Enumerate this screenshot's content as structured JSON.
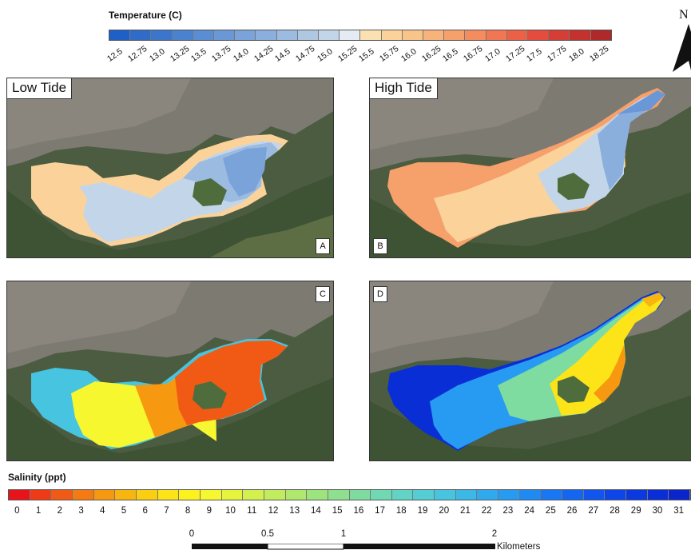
{
  "temperature_legend": {
    "title": "Temperature (C)",
    "labels": [
      "12.5",
      "12.75",
      "13.0",
      "13.25",
      "13.5",
      "13.75",
      "14.0",
      "14.25",
      "14.5",
      "14.75",
      "15.0",
      "15.25",
      "15.5",
      "15.75",
      "16.0",
      "16.25",
      "16.5",
      "16.75",
      "17.0",
      "17.25",
      "17.5",
      "17.75",
      "18.0",
      "18.25"
    ],
    "colors": [
      "#1f5fc8",
      "#2f6cc9",
      "#3b76cc",
      "#4a82d0",
      "#5a8dd3",
      "#6a98d6",
      "#7aa3d9",
      "#8bafdc",
      "#9cbbe0",
      "#aec8e4",
      "#c3d5e8",
      "#e4ebf2",
      "#fbe0b2",
      "#fbd39a",
      "#f9c488",
      "#f8b37a",
      "#f6a06b",
      "#f48c5e",
      "#f17652",
      "#ec6146",
      "#e44d3d",
      "#d63d35",
      "#c43230",
      "#b0292a"
    ]
  },
  "salinity_legend": {
    "title": "Salinity (ppt)",
    "labels": [
      "0",
      "1",
      "2",
      "3",
      "4",
      "5",
      "6",
      "7",
      "8",
      "9",
      "10",
      "11",
      "12",
      "13",
      "14",
      "15",
      "16",
      "17",
      "18",
      "19",
      "20",
      "21",
      "22",
      "23",
      "24",
      "25",
      "26",
      "27",
      "28",
      "29",
      "30",
      "31"
    ],
    "colors": [
      "#e8141a",
      "#ee3a16",
      "#f15a14",
      "#f47a12",
      "#f69810",
      "#f8b510",
      "#facf12",
      "#fce418",
      "#fdf21e",
      "#f6f72e",
      "#e6f43e",
      "#d4f04e",
      "#c2ec5e",
      "#b0e86e",
      "#9ee47e",
      "#8ee08e",
      "#7fdca0",
      "#70d8b2",
      "#62d3c4",
      "#54cdd4",
      "#47c4e0",
      "#3bb8e8",
      "#30aaee",
      "#279af2",
      "#1f89f4",
      "#1878f4",
      "#1366f2",
      "#0f55ee",
      "#0c46e8",
      "#0a39e0",
      "#0a2ed6",
      "#0a25cc"
    ]
  },
  "north_arrow": {
    "label": "N"
  },
  "scale_bar": {
    "labels": [
      "0",
      "0.5",
      "1",
      "2"
    ],
    "unit": "Kilometers"
  },
  "panels": [
    {
      "id": "A",
      "title": "Low Tide",
      "letter": "A",
      "variable": "temperature"
    },
    {
      "id": "B",
      "title": "High Tide",
      "letter": "B",
      "variable": "temperature"
    },
    {
      "id": "C",
      "title": "",
      "letter": "C",
      "variable": "salinity"
    },
    {
      "id": "D",
      "title": "",
      "letter": "D",
      "variable": "salinity"
    }
  ]
}
